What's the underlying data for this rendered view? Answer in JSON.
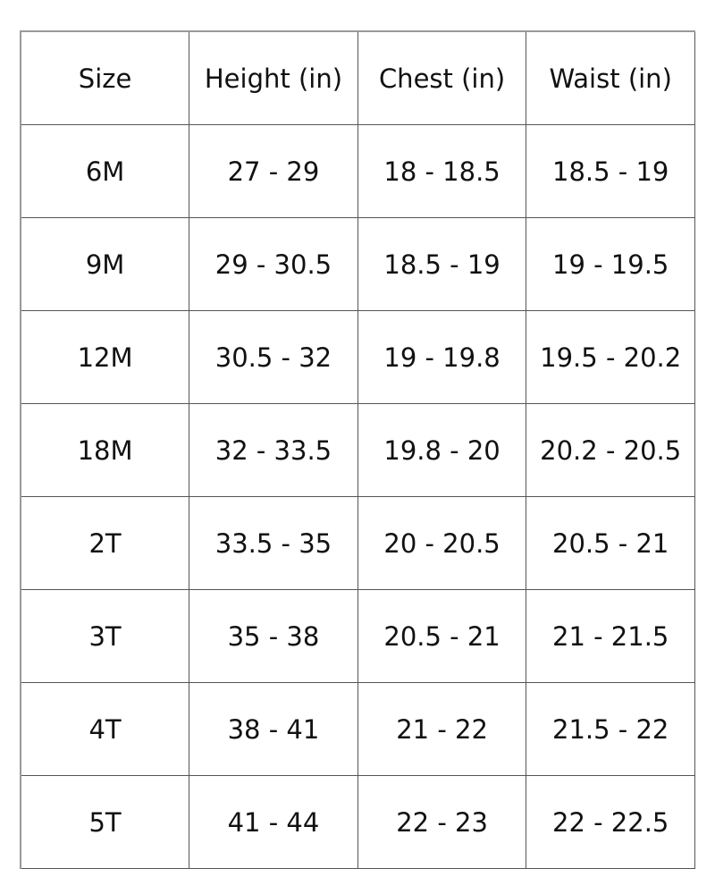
{
  "table": {
    "headers": [
      "Size",
      "Height (in)",
      "Chest (in)",
      "Waist (in)"
    ],
    "rows": [
      [
        "6M",
        "27 - 29",
        "18 - 18.5",
        "18.5 - 19"
      ],
      [
        "9M",
        "29 - 30.5",
        "18.5 - 19",
        "19 - 19.5"
      ],
      [
        "12M",
        "30.5 - 32",
        "19 - 19.8",
        "19.5 - 20.2"
      ],
      [
        "18M",
        "32 - 33.5",
        "19.8 - 20",
        "20.2 - 20.5"
      ],
      [
        "2T",
        "33.5 - 35",
        "20 - 20.5",
        "20.5 - 21"
      ],
      [
        "3T",
        "35 - 38",
        "20.5 - 21",
        "21 - 21.5"
      ],
      [
        "4T",
        "38 - 41",
        "21 - 22",
        "21.5 - 22"
      ],
      [
        "5T",
        "41 - 44",
        "22 - 23",
        "22 - 22.5"
      ]
    ]
  }
}
